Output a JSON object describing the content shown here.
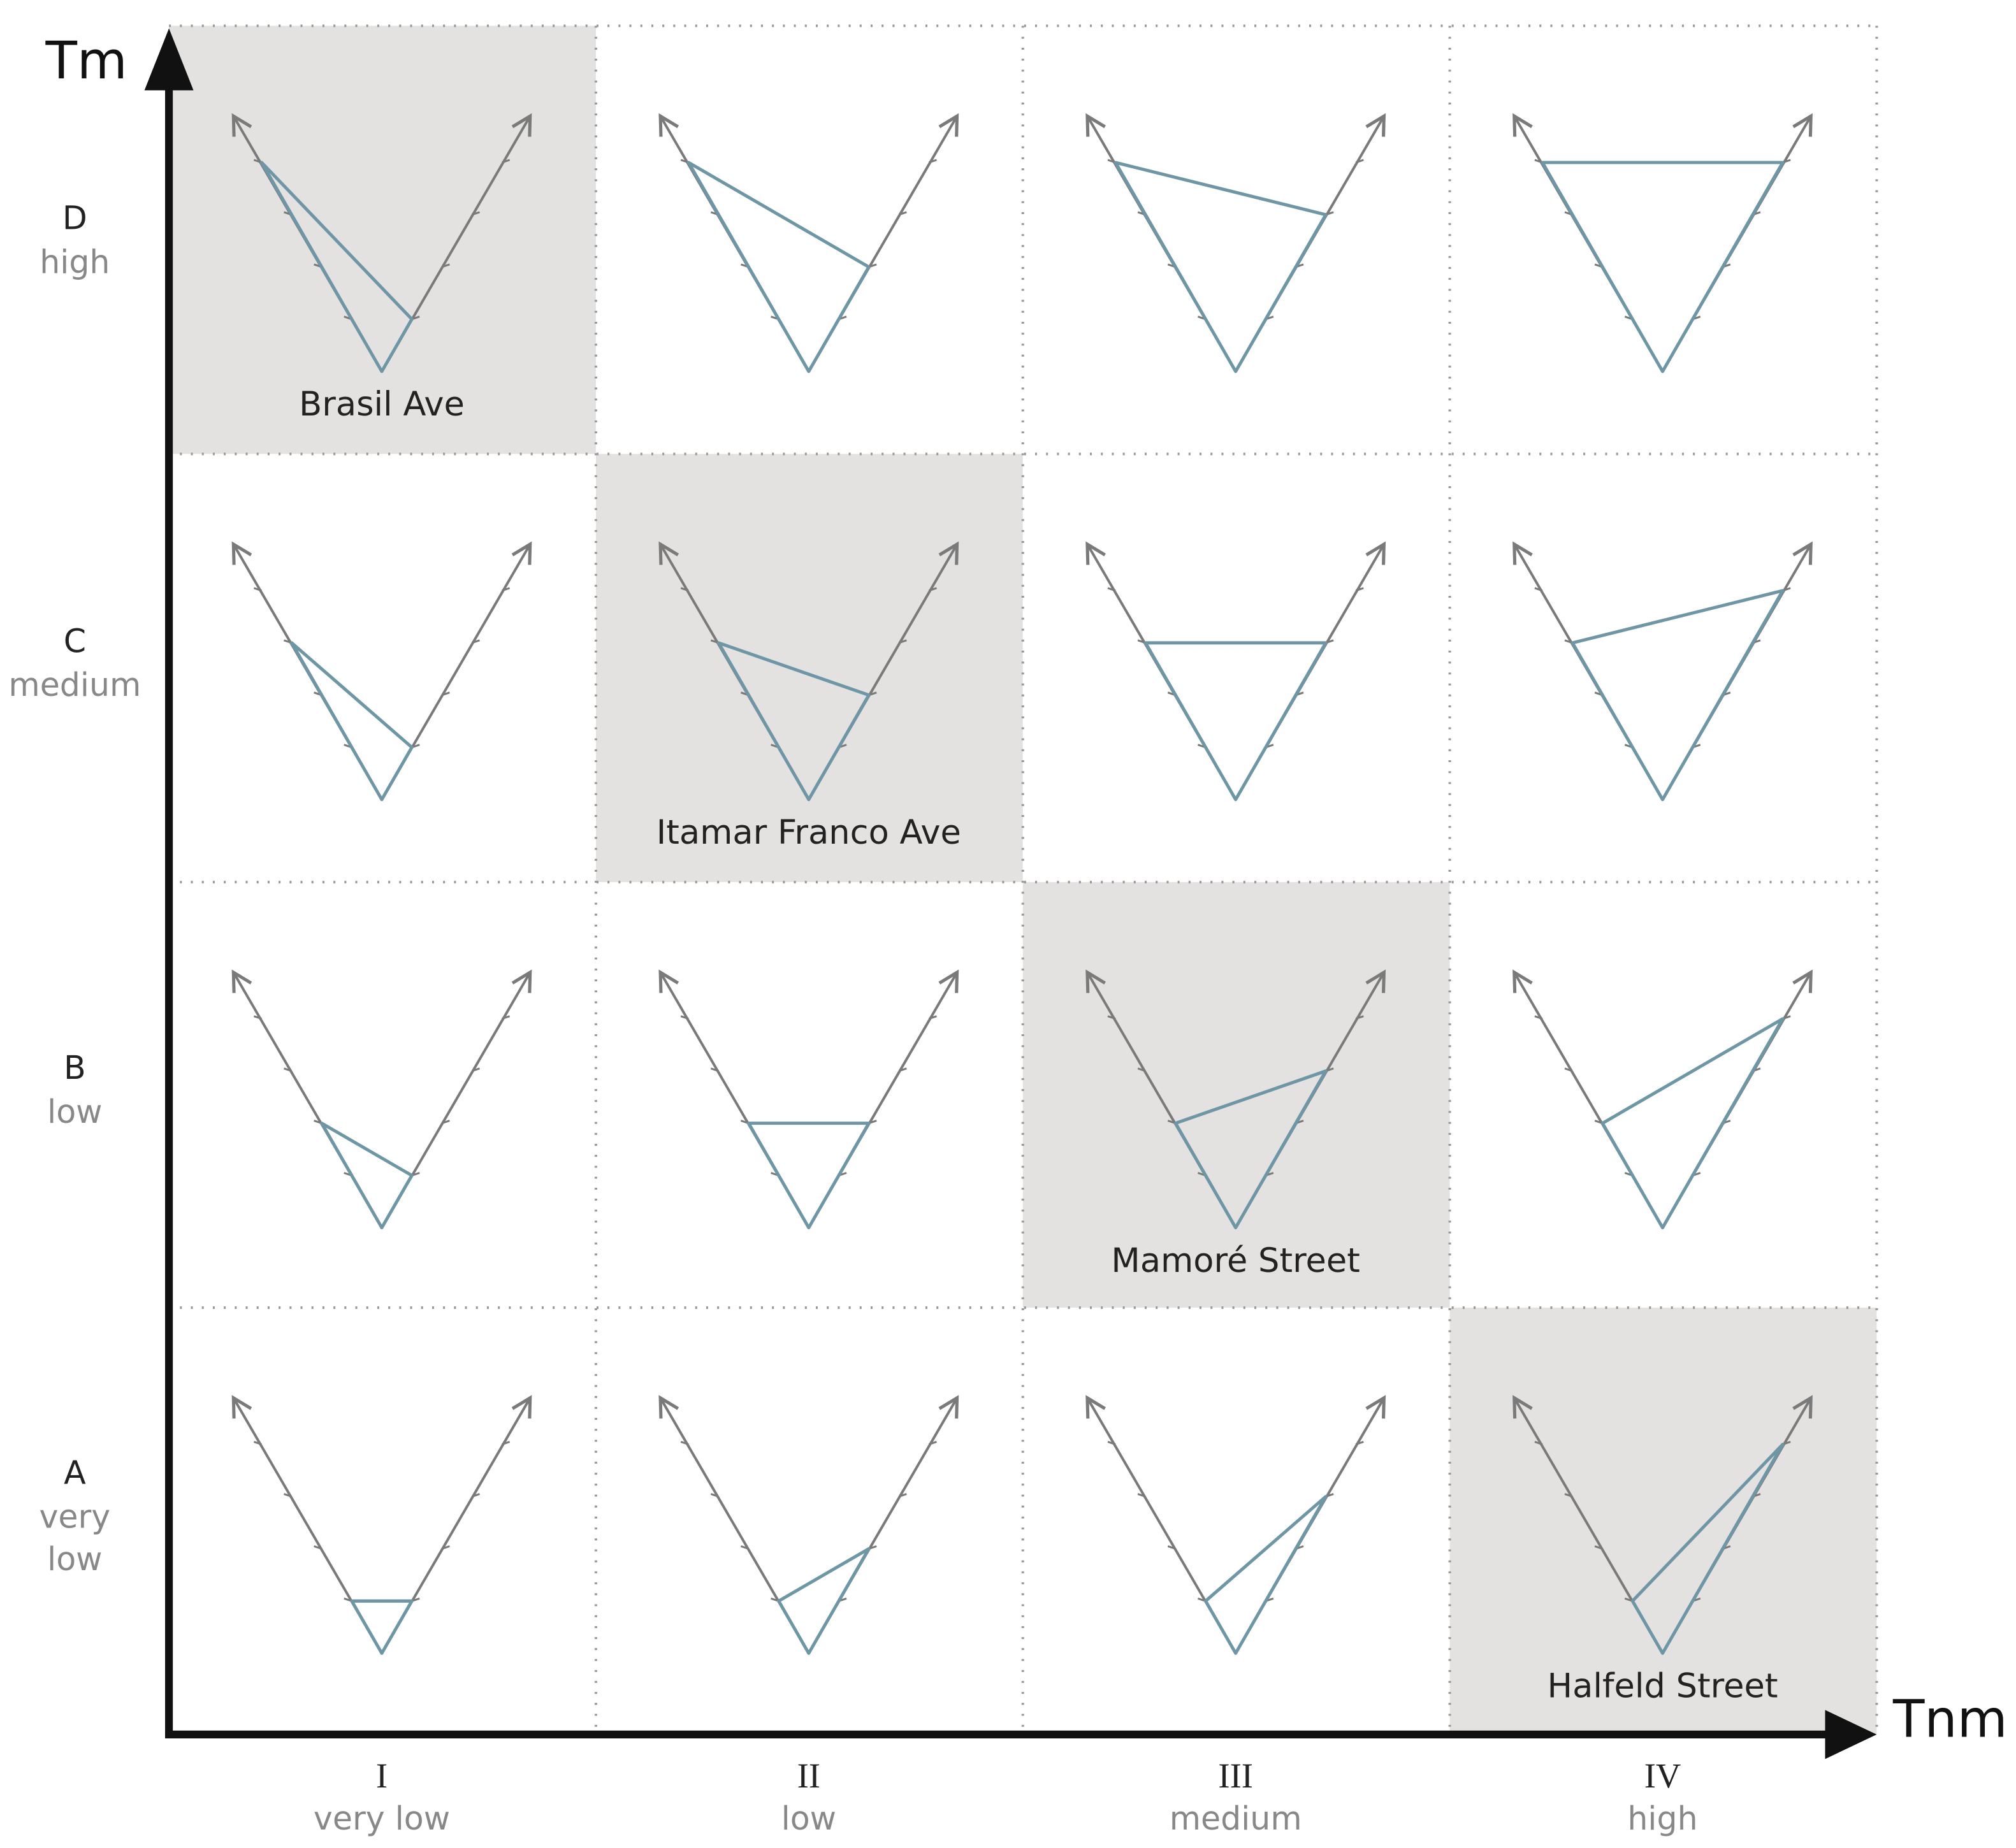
{
  "y_axis": {
    "label": "Tm"
  },
  "x_axis": {
    "label": "Tnm"
  },
  "rows": [
    {
      "letter": "D",
      "level": [
        "high"
      ]
    },
    {
      "letter": "C",
      "level": [
        "medium"
      ]
    },
    {
      "letter": "B",
      "level": [
        "low"
      ]
    },
    {
      "letter": "A",
      "level": [
        "very",
        "low"
      ]
    }
  ],
  "columns": [
    {
      "numeral": "I",
      "level": "very low"
    },
    {
      "numeral": "II",
      "level": "low"
    },
    {
      "numeral": "III",
      "level": "medium"
    },
    {
      "numeral": "IV",
      "level": "high"
    }
  ],
  "highlighted_cells": [
    {
      "label": "Brasil Ave"
    },
    {
      "label": "Itamar Franco Ave"
    },
    {
      "label": "Mamoré Street"
    },
    {
      "label": "Halfeld Street"
    }
  ]
}
